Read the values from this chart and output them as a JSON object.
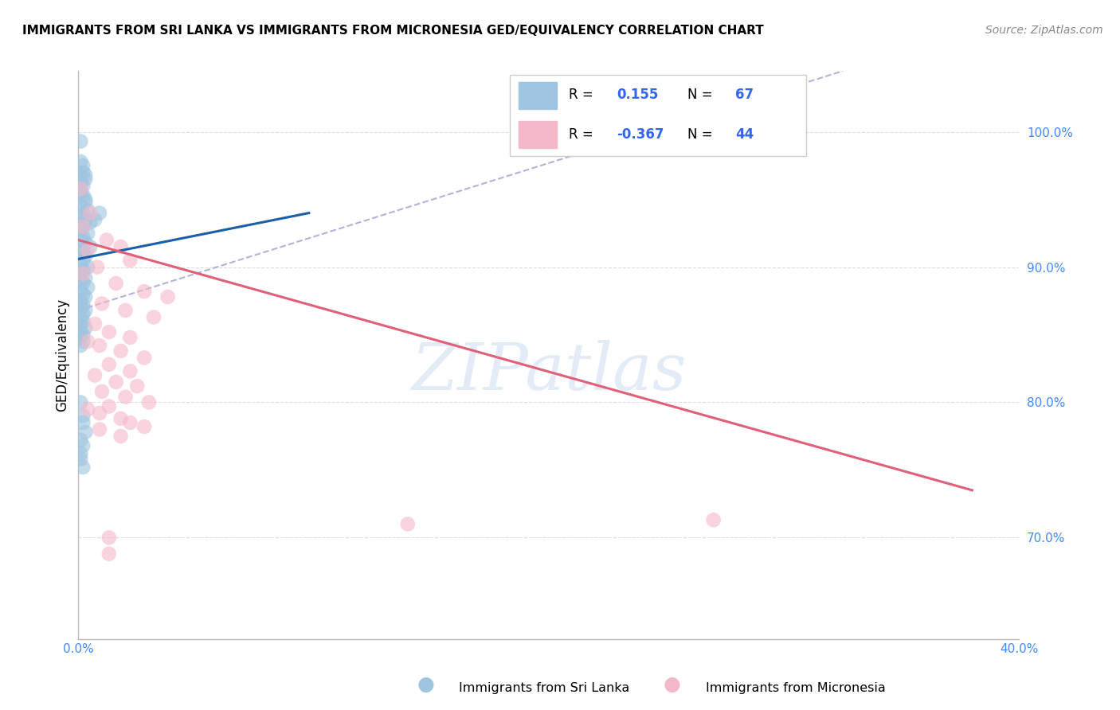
{
  "title": "IMMIGRANTS FROM SRI LANKA VS IMMIGRANTS FROM MICRONESIA GED/EQUIVALENCY CORRELATION CHART",
  "source": "Source: ZipAtlas.com",
  "ylabel": "GED/Equivalency",
  "ytick_labels": [
    "70.0%",
    "80.0%",
    "90.0%",
    "100.0%"
  ],
  "ytick_values": [
    0.7,
    0.8,
    0.9,
    1.0
  ],
  "xtick_labels": [
    "0.0%",
    "",
    "",
    "",
    "40.0%"
  ],
  "xtick_values": [
    0.0,
    0.1,
    0.2,
    0.3,
    0.4
  ],
  "xmin": 0.0,
  "xmax": 0.4,
  "ymin": 0.625,
  "ymax": 1.045,
  "blue_color": "#9ec4e0",
  "pink_color": "#f5b8c8",
  "blue_line_color": "#1a5fa8",
  "pink_line_color": "#e0607a",
  "dashed_line_color": "#9999cc",
  "tick_color": "#4488ff",
  "grid_color": "#dddddd",
  "watermark_text": "ZIPatlas",
  "watermark_color": "#c8d8ee",
  "sri_lanka_points": [
    [
      0.001,
      0.993
    ],
    [
      0.001,
      0.978
    ],
    [
      0.002,
      0.975
    ],
    [
      0.002,
      0.97
    ],
    [
      0.001,
      0.968
    ],
    [
      0.003,
      0.965
    ],
    [
      0.001,
      0.963
    ],
    [
      0.002,
      0.96
    ],
    [
      0.001,
      0.958
    ],
    [
      0.001,
      0.955
    ],
    [
      0.002,
      0.953
    ],
    [
      0.003,
      0.95
    ],
    [
      0.003,
      0.948
    ],
    [
      0.001,
      0.945
    ],
    [
      0.004,
      0.942
    ],
    [
      0.002,
      0.94
    ],
    [
      0.001,
      0.938
    ],
    [
      0.003,
      0.935
    ],
    [
      0.005,
      0.933
    ],
    [
      0.002,
      0.93
    ],
    [
      0.001,
      0.928
    ],
    [
      0.004,
      0.925
    ],
    [
      0.002,
      0.922
    ],
    [
      0.001,
      0.92
    ],
    [
      0.003,
      0.918
    ],
    [
      0.005,
      0.915
    ],
    [
      0.002,
      0.912
    ],
    [
      0.001,
      0.91
    ],
    [
      0.003,
      0.908
    ],
    [
      0.002,
      0.905
    ],
    [
      0.001,
      0.902
    ],
    [
      0.004,
      0.9
    ],
    [
      0.002,
      0.898
    ],
    [
      0.001,
      0.895
    ],
    [
      0.003,
      0.892
    ],
    [
      0.001,
      0.89
    ],
    [
      0.002,
      0.888
    ],
    [
      0.004,
      0.885
    ],
    [
      0.001,
      0.882
    ],
    [
      0.002,
      0.88
    ],
    [
      0.003,
      0.878
    ],
    [
      0.001,
      0.875
    ],
    [
      0.002,
      0.872
    ],
    [
      0.001,
      0.87
    ],
    [
      0.003,
      0.868
    ],
    [
      0.002,
      0.865
    ],
    [
      0.001,
      0.862
    ],
    [
      0.002,
      0.86
    ],
    [
      0.001,
      0.857
    ],
    [
      0.003,
      0.855
    ],
    [
      0.001,
      0.852
    ],
    [
      0.002,
      0.85
    ],
    [
      0.007,
      0.935
    ],
    [
      0.009,
      0.94
    ],
    [
      0.003,
      0.968
    ],
    [
      0.001,
      0.848
    ],
    [
      0.002,
      0.845
    ],
    [
      0.001,
      0.842
    ],
    [
      0.001,
      0.8
    ],
    [
      0.002,
      0.79
    ],
    [
      0.002,
      0.785
    ],
    [
      0.003,
      0.778
    ],
    [
      0.001,
      0.772
    ],
    [
      0.002,
      0.768
    ],
    [
      0.001,
      0.762
    ],
    [
      0.001,
      0.758
    ],
    [
      0.002,
      0.752
    ]
  ],
  "micronesia_points": [
    [
      0.001,
      0.958
    ],
    [
      0.005,
      0.94
    ],
    [
      0.002,
      0.93
    ],
    [
      0.012,
      0.92
    ],
    [
      0.018,
      0.915
    ],
    [
      0.004,
      0.912
    ],
    [
      0.022,
      0.905
    ],
    [
      0.008,
      0.9
    ],
    [
      0.002,
      0.895
    ],
    [
      0.016,
      0.888
    ],
    [
      0.028,
      0.882
    ],
    [
      0.038,
      0.878
    ],
    [
      0.01,
      0.873
    ],
    [
      0.02,
      0.868
    ],
    [
      0.032,
      0.863
    ],
    [
      0.007,
      0.858
    ],
    [
      0.013,
      0.852
    ],
    [
      0.022,
      0.848
    ],
    [
      0.004,
      0.845
    ],
    [
      0.009,
      0.842
    ],
    [
      0.018,
      0.838
    ],
    [
      0.028,
      0.833
    ],
    [
      0.013,
      0.828
    ],
    [
      0.022,
      0.823
    ],
    [
      0.007,
      0.82
    ],
    [
      0.016,
      0.815
    ],
    [
      0.025,
      0.812
    ],
    [
      0.01,
      0.808
    ],
    [
      0.02,
      0.804
    ],
    [
      0.03,
      0.8
    ],
    [
      0.013,
      0.797
    ],
    [
      0.004,
      0.795
    ],
    [
      0.009,
      0.792
    ],
    [
      0.018,
      0.788
    ],
    [
      0.022,
      0.785
    ],
    [
      0.028,
      0.782
    ],
    [
      0.009,
      0.78
    ],
    [
      0.018,
      0.775
    ],
    [
      0.27,
      0.713
    ],
    [
      0.14,
      0.71
    ],
    [
      0.013,
      0.7
    ],
    [
      0.013,
      0.688
    ]
  ],
  "blue_line_x": [
    0.0,
    0.098
  ],
  "blue_line_y": [
    0.906,
    0.94
  ],
  "pink_line_x": [
    0.0,
    0.38
  ],
  "pink_line_y": [
    0.92,
    0.735
  ],
  "dashed_line_x": [
    0.0,
    0.325
  ],
  "dashed_line_y": [
    0.868,
    1.045
  ]
}
